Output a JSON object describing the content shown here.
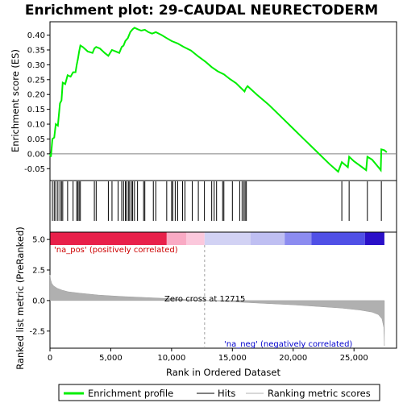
{
  "chart_data": [
    {
      "type": "line",
      "title": "Enrichment plot: 29-CAUDAL NEURECTODERM",
      "ylabel": "Enrichment score (ES)",
      "xlim": [
        0,
        28500
      ],
      "ylim": [
        -0.09,
        0.445
      ],
      "yticks": [
        -0.05,
        0.0,
        0.05,
        0.1,
        0.15,
        0.2,
        0.25,
        0.3,
        0.35,
        0.4
      ],
      "ytick_labels": [
        "-0.05",
        "0.00",
        "0.05",
        "0.10",
        "0.15",
        "0.20",
        "0.25",
        "0.30",
        "0.35",
        "0.40"
      ],
      "series": [
        {
          "name": "Enrichment profile",
          "color": "#00ee00",
          "points": [
            [
              0,
              0.0
            ],
            [
              80,
              -0.01
            ],
            [
              200,
              0.05
            ],
            [
              350,
              0.055
            ],
            [
              480,
              0.1
            ],
            [
              650,
              0.095
            ],
            [
              820,
              0.17
            ],
            [
              950,
              0.18
            ],
            [
              1050,
              0.24
            ],
            [
              1250,
              0.235
            ],
            [
              1450,
              0.265
            ],
            [
              1700,
              0.26
            ],
            [
              1900,
              0.275
            ],
            [
              2100,
              0.275
            ],
            [
              2200,
              0.3
            ],
            [
              2300,
              0.32
            ],
            [
              2400,
              0.345
            ],
            [
              2500,
              0.365
            ],
            [
              2700,
              0.36
            ],
            [
              3100,
              0.345
            ],
            [
              3500,
              0.34
            ],
            [
              3650,
              0.355
            ],
            [
              3800,
              0.36
            ],
            [
              4100,
              0.355
            ],
            [
              4500,
              0.34
            ],
            [
              4800,
              0.33
            ],
            [
              5100,
              0.35
            ],
            [
              5400,
              0.345
            ],
            [
              5700,
              0.34
            ],
            [
              5900,
              0.36
            ],
            [
              6050,
              0.365
            ],
            [
              6200,
              0.38
            ],
            [
              6400,
              0.39
            ],
            [
              6600,
              0.41
            ],
            [
              6800,
              0.42
            ],
            [
              6950,
              0.425
            ],
            [
              7200,
              0.42
            ],
            [
              7500,
              0.415
            ],
            [
              7800,
              0.418
            ],
            [
              8100,
              0.41
            ],
            [
              8400,
              0.405
            ],
            [
              8700,
              0.41
            ],
            [
              9200,
              0.4
            ],
            [
              9600,
              0.39
            ],
            [
              10000,
              0.38
            ],
            [
              10500,
              0.372
            ],
            [
              11000,
              0.36
            ],
            [
              11600,
              0.348
            ],
            [
              12200,
              0.328
            ],
            [
              12800,
              0.31
            ],
            [
              13300,
              0.292
            ],
            [
              13800,
              0.278
            ],
            [
              14300,
              0.268
            ],
            [
              14800,
              0.252
            ],
            [
              15300,
              0.238
            ],
            [
              15700,
              0.222
            ],
            [
              16000,
              0.21
            ],
            [
              16100,
              0.22
            ],
            [
              16250,
              0.228
            ],
            [
              16600,
              0.215
            ],
            [
              17000,
              0.2
            ],
            [
              18000,
              0.165
            ],
            [
              19000,
              0.125
            ],
            [
              20000,
              0.085
            ],
            [
              21000,
              0.045
            ],
            [
              22000,
              0.005
            ],
            [
              23000,
              -0.035
            ],
            [
              23700,
              -0.06
            ],
            [
              24000,
              -0.028
            ],
            [
              24500,
              -0.045
            ],
            [
              24600,
              -0.01
            ],
            [
              25000,
              -0.025
            ],
            [
              26000,
              -0.055
            ],
            [
              26100,
              -0.01
            ],
            [
              26500,
              -0.02
            ],
            [
              27000,
              -0.045
            ],
            [
              27200,
              -0.055
            ],
            [
              27250,
              0.015
            ],
            [
              27500,
              0.012
            ],
            [
              27700,
              0.005
            ]
          ]
        }
      ]
    },
    {
      "type": "scatter",
      "title": "",
      "series": [
        {
          "name": "Hits",
          "color": "#000000",
          "x": [
            200,
            350,
            480,
            650,
            820,
            950,
            1050,
            1450,
            1900,
            2200,
            2300,
            2400,
            2500,
            3650,
            3800,
            4800,
            5100,
            5600,
            5900,
            6050,
            6200,
            6300,
            6450,
            6550,
            6700,
            6800,
            6950,
            7200,
            7700,
            7800,
            8500,
            8700,
            9600,
            10000,
            10100,
            10300,
            10500,
            10900,
            11100,
            11700,
            12200,
            12700,
            13300,
            13500,
            13700,
            14200,
            14300,
            15000,
            15600,
            15800,
            15950,
            16050,
            16150,
            24000,
            24600,
            26100,
            27250
          ]
        }
      ]
    },
    {
      "type": "heatmap",
      "title": "",
      "series": [
        {
          "name": "rank colour bar",
          "segments": [
            {
              "from": 0,
              "to": 9600,
              "color": "#e8204a"
            },
            {
              "from": 9600,
              "to": 11200,
              "color": "#f9aac4"
            },
            {
              "from": 11200,
              "to": 12715,
              "color": "#fbc8dc"
            },
            {
              "from": 12715,
              "to": 16500,
              "color": "#d2d2f4"
            },
            {
              "from": 16500,
              "to": 19300,
              "color": "#bfbff2"
            },
            {
              "from": 19300,
              "to": 21500,
              "color": "#8c8cf0"
            },
            {
              "from": 21500,
              "to": 25900,
              "color": "#5050e6"
            },
            {
              "from": 25900,
              "to": 27500,
              "color": "#2a10c8"
            }
          ]
        }
      ]
    },
    {
      "type": "area",
      "title": "",
      "xlabel": "Rank in Ordered Dataset",
      "ylabel": "Ranked list metric (PreRanked)",
      "xlim": [
        0,
        28500
      ],
      "ylim": [
        -3.9,
        5.6
      ],
      "xticks": [
        0,
        5000,
        10000,
        15000,
        20000,
        25000
      ],
      "xtick_labels": [
        "0",
        "5,000",
        "10,000",
        "15,000",
        "20,000",
        "25,000"
      ],
      "yticks": [
        -2.5,
        0.0,
        2.5,
        5.0
      ],
      "ytick_labels": [
        "-2.5",
        "0.0",
        "2.5",
        "5.0"
      ],
      "zero_cross": 12715,
      "annotations": {
        "zero_cross": "Zero cross at 12715",
        "positive": "'na_pos' (positively correlated)",
        "negative": "'na_neg' (negatively correlated)"
      },
      "series": [
        {
          "name": "Ranking metric scores",
          "color": "#b0b0b0",
          "points": [
            [
              0,
              2.1
            ],
            [
              50,
              1.7
            ],
            [
              150,
              1.4
            ],
            [
              300,
              1.2
            ],
            [
              600,
              1.0
            ],
            [
              1000,
              0.85
            ],
            [
              1500,
              0.72
            ],
            [
              2500,
              0.6
            ],
            [
              4000,
              0.45
            ],
            [
              6000,
              0.33
            ],
            [
              8000,
              0.24
            ],
            [
              10000,
              0.15
            ],
            [
              12715,
              0.0
            ],
            [
              15000,
              -0.1
            ],
            [
              18000,
              -0.25
            ],
            [
              20000,
              -0.35
            ],
            [
              22000,
              -0.48
            ],
            [
              24000,
              -0.62
            ],
            [
              25500,
              -0.78
            ],
            [
              26500,
              -0.95
            ],
            [
              27000,
              -1.15
            ],
            [
              27300,
              -1.5
            ],
            [
              27450,
              -2.2
            ],
            [
              27500,
              -3.7
            ]
          ]
        }
      ]
    }
  ],
  "legend": {
    "items": [
      {
        "label": "Enrichment profile",
        "color": "#00ee00"
      },
      {
        "label": "Hits",
        "color": "#000000"
      },
      {
        "label": "Ranking metric scores",
        "color": "#b0b0b0"
      }
    ]
  }
}
